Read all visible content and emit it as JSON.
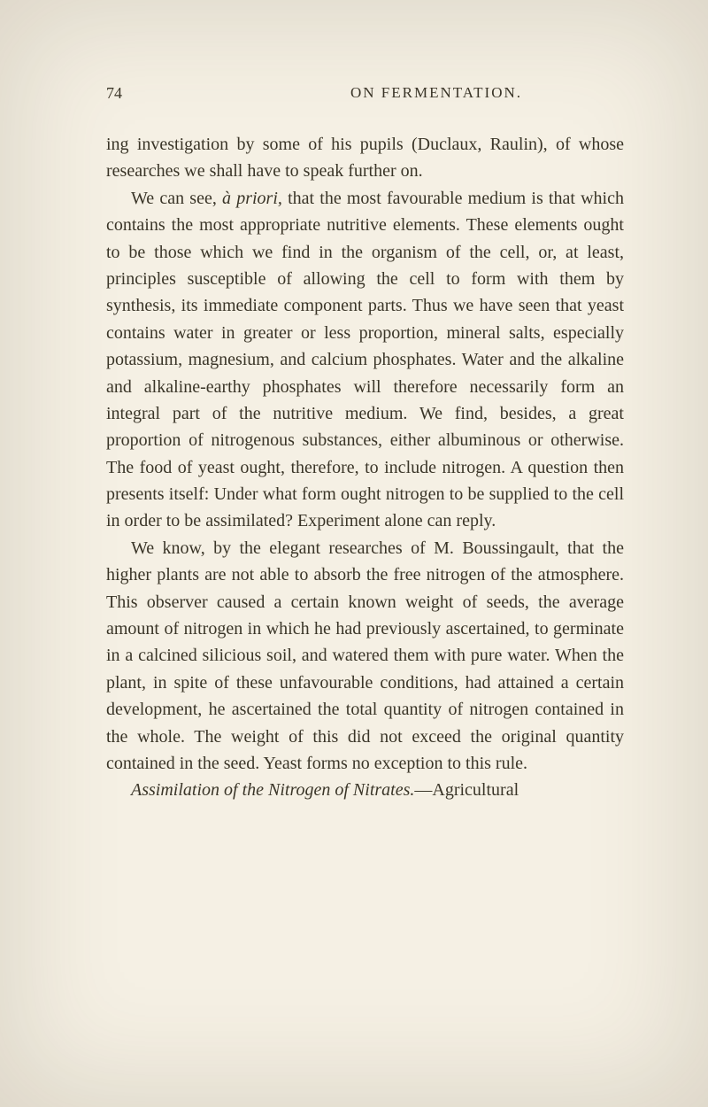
{
  "page": {
    "number": "74",
    "runningHead": "ON FERMENTATION.",
    "paragraphs": [
      {
        "segments": [
          {
            "text": "ing investigation by some of his pupils (Duclaux, Raulin), of whose researches we shall have to speak further on.",
            "italic": false
          }
        ],
        "first": true
      },
      {
        "segments": [
          {
            "text": "We can see, ",
            "italic": false
          },
          {
            "text": "à priori,",
            "italic": true
          },
          {
            "text": " that the most favourable medium is that which contains the most appropriate nutritive elements. These elements ought to be those which we find in the organism of the cell, or, at least, principles susceptible of allowing the cell to form with them by synthesis, its immediate component parts. Thus we have seen that yeast contains water in greater or less proportion, mineral salts, especially potassium, magnesium, and calcium phosphates. Water and the alkaline and alkaline-earthy phosphates will therefore necessarily form an integral part of the nutritive medium. We find, besides, a great proportion of nitrogenous substances, either albuminous or otherwise. The food of yeast ought, therefore, to include nitrogen. A question then presents itself: Under what form ought nitrogen to be supplied to the cell in order to be assimilated? Experiment alone can reply.",
            "italic": false
          }
        ],
        "first": false
      },
      {
        "segments": [
          {
            "text": "We know, by the elegant researches of M. Boussingault, that the higher plants are not able to absorb the free nitrogen of the atmosphere. This observer caused a certain known weight of seeds, the average amount of nitrogen in which he had previously ascertained, to germinate in a calcined silicious soil, and watered them with pure water. When the plant, in spite of these unfavourable conditions, had attained a certain development, he ascertained the total quantity of nitrogen contained in the whole. The weight of this did not exceed the original quantity contained in the seed. Yeast forms no exception to this rule.",
            "italic": false
          }
        ],
        "first": false
      },
      {
        "segments": [
          {
            "text": "Assimilation of the Nitrogen of Nitrates.",
            "italic": true
          },
          {
            "text": "—Agricultural",
            "italic": false
          }
        ],
        "first": false
      }
    ]
  },
  "colors": {
    "background": "#f5f0e4",
    "text": "#3a3528"
  },
  "typography": {
    "bodyFontSize": 20,
    "headerFontSize": 18,
    "lineHeight": 1.52,
    "fontFamily": "Georgia, Times New Roman, serif"
  }
}
